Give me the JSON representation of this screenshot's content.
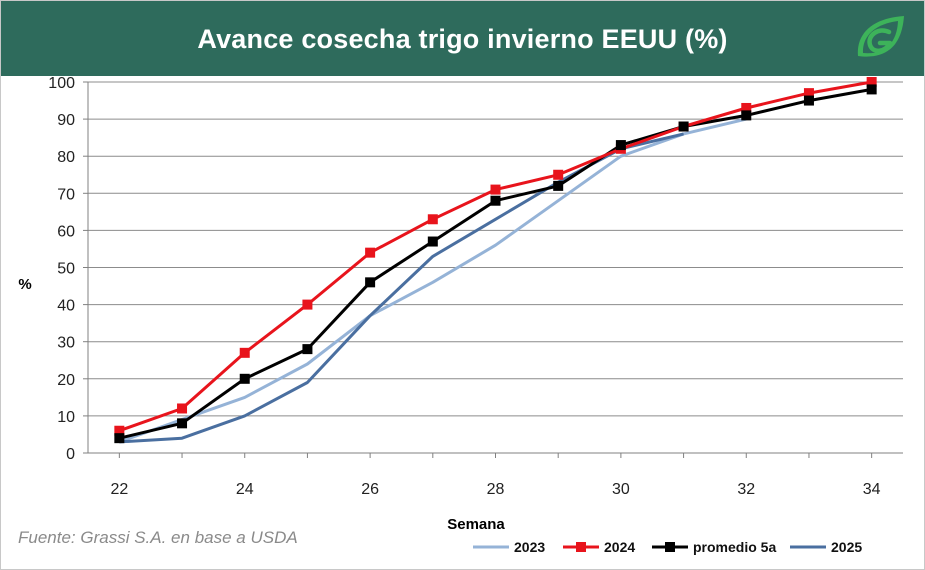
{
  "header": {
    "title": "Avance cosecha trigo invierno EEUU (%)",
    "logo_icon": "grassi-leaf-logo-icon",
    "background": "#2e6b5c"
  },
  "source_note": "Fuente: Grassi S.A. en base a USDA",
  "chart_data": {
    "type": "line",
    "title": "Avance cosecha trigo invierno EEUU (%)",
    "xlabel": "Semana",
    "ylabel": "%",
    "xlim": [
      21.5,
      34.5
    ],
    "ylim": [
      0,
      100
    ],
    "x_ticks": [
      22,
      24,
      26,
      28,
      30,
      32,
      34
    ],
    "y_ticks": [
      0,
      10,
      20,
      30,
      40,
      50,
      60,
      70,
      80,
      90,
      100
    ],
    "grid": "horizontal",
    "legend_position": "bottom-right",
    "series": [
      {
        "name": "2023",
        "color": "#95b3d7",
        "marker": "none",
        "x": [
          22,
          23,
          24,
          25,
          26,
          27,
          28,
          29,
          30,
          31,
          32
        ],
        "y": [
          3,
          9,
          15,
          24,
          37,
          46,
          56,
          68,
          80,
          86,
          90
        ]
      },
      {
        "name": "2024",
        "color": "#e8141c",
        "marker": "square",
        "x": [
          22,
          23,
          24,
          25,
          26,
          27,
          28,
          29,
          30,
          31,
          32,
          33,
          34
        ],
        "y": [
          6,
          12,
          27,
          40,
          54,
          63,
          71,
          75,
          82,
          88,
          93,
          97,
          100
        ]
      },
      {
        "name": "promedio 5a",
        "color": "#000000",
        "marker": "square",
        "x": [
          22,
          23,
          24,
          25,
          26,
          27,
          28,
          29,
          30,
          31,
          32,
          33,
          34
        ],
        "y": [
          4,
          8,
          20,
          28,
          46,
          57,
          68,
          72,
          83,
          88,
          91,
          95,
          98
        ]
      },
      {
        "name": "2025",
        "color": "#4a6fa0",
        "marker": "none",
        "x": [
          22,
          23,
          24,
          25,
          26,
          27,
          28,
          29,
          30,
          31
        ],
        "y": [
          3,
          4,
          10,
          19,
          37,
          53,
          63,
          73,
          82,
          86
        ]
      }
    ]
  }
}
